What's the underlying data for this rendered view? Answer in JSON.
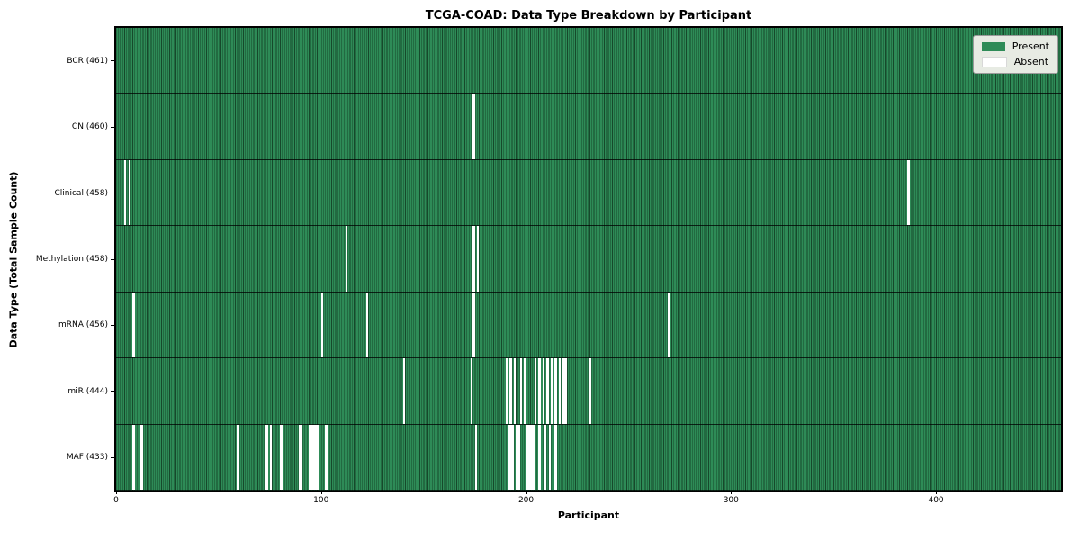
{
  "chart_data": {
    "type": "heatmap",
    "title": "TCGA-COAD: Data Type Breakdown by Participant",
    "xlabel": "Participant",
    "ylabel": "Data Type (Total Sample Count)",
    "x_ticks": [
      0,
      100,
      200,
      300,
      400
    ],
    "x_range": [
      0,
      461
    ],
    "n_participants": 461,
    "grid": false,
    "legend_position": "upper right",
    "legend": [
      {
        "label": "Present",
        "color": "#2e8b57"
      },
      {
        "label": "Absent",
        "color": "#ffffff"
      }
    ],
    "colors": {
      "present_fill": "#2e8b57",
      "present_edge": "#16492b",
      "absent_fill": "#ffffff",
      "legend_bg": "#e7ebe3",
      "separator": "#000000"
    },
    "rows": [
      {
        "label": "BCR (461)",
        "data_type": "BCR",
        "present_count": 461,
        "absent_participants": []
      },
      {
        "label": "CN (460)",
        "data_type": "CN",
        "present_count": 460,
        "absent_participants": [
          174
        ]
      },
      {
        "label": "Clinical (458)",
        "data_type": "Clinical",
        "present_count": 458,
        "absent_participants": [
          4,
          6,
          386
        ]
      },
      {
        "label": "Methylation (458)",
        "data_type": "Methylation",
        "present_count": 458,
        "absent_participants": [
          112,
          174,
          176
        ]
      },
      {
        "label": "mRNA (456)",
        "data_type": "mRNA",
        "present_count": 456,
        "absent_participants": [
          8,
          100,
          122,
          174,
          269
        ]
      },
      {
        "label": "miR (444)",
        "data_type": "miR",
        "present_count": 444,
        "absent_participants": [
          140,
          173,
          190,
          192,
          194,
          197,
          199,
          204,
          206,
          208,
          210,
          212,
          214,
          216,
          218,
          219,
          231
        ]
      },
      {
        "label": "MAF (433)",
        "data_type": "MAF",
        "present_count": 433,
        "absent_participants": [
          8,
          12,
          59,
          73,
          75,
          80,
          89,
          90,
          94,
          95,
          96,
          97,
          98,
          102,
          175,
          191,
          192,
          193,
          195,
          196,
          200,
          201,
          202,
          203,
          206,
          209,
          211,
          214
        ]
      }
    ]
  }
}
